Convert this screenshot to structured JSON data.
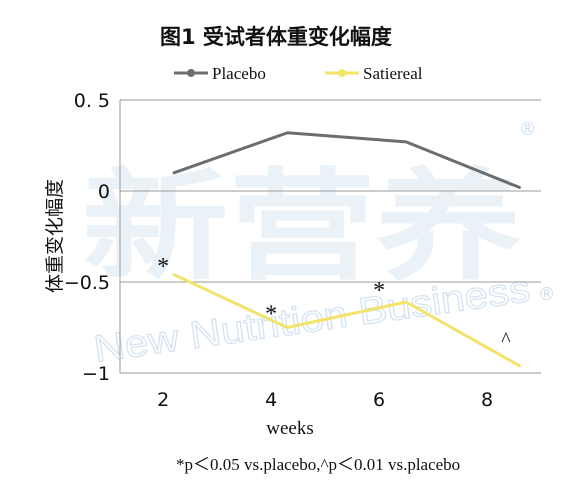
{
  "chart_data": {
    "type": "line",
    "title": "图1 受试者体重变化幅度",
    "xlabel": "weeks",
    "ylabel": "体重变化幅度",
    "x_ticks": [
      2,
      4,
      6,
      8
    ],
    "y_ticks": [
      0.5,
      0,
      -0.5,
      -1
    ],
    "y_tick_labels": [
      "0. 5",
      "0",
      "−0.5",
      "−1"
    ],
    "ylim": [
      -1,
      0.5
    ],
    "grid": "horizontal",
    "legend_position": "top",
    "series": [
      {
        "name": "Placebo",
        "color": "#6b6e71",
        "points": [
          {
            "x": 2.2,
            "y": 0.1
          },
          {
            "x": 4.3,
            "y": 0.32
          },
          {
            "x": 6.5,
            "y": 0.27
          },
          {
            "x": 8.6,
            "y": 0.02
          }
        ]
      },
      {
        "name": "Satiereal",
        "color": "#f2e36a",
        "points": [
          {
            "x": 2.2,
            "y": -0.46
          },
          {
            "x": 4.3,
            "y": -0.75
          },
          {
            "x": 6.5,
            "y": -0.61
          },
          {
            "x": 8.6,
            "y": -0.96
          }
        ]
      }
    ],
    "annotations": [
      {
        "text": "*",
        "x": 2.0,
        "y": -0.38
      },
      {
        "text": "*",
        "x": 4.0,
        "y": -0.64
      },
      {
        "text": "*",
        "x": 6.0,
        "y": -0.51
      },
      {
        "text": "^",
        "x": 8.35,
        "y": -0.82
      }
    ],
    "footnote": "*p＜0.05 vs.placebo,^p＜0.01 vs.placebo"
  },
  "watermark": {
    "chinese": "新营养",
    "english": "New Nutrition Business",
    "registered": "®"
  }
}
